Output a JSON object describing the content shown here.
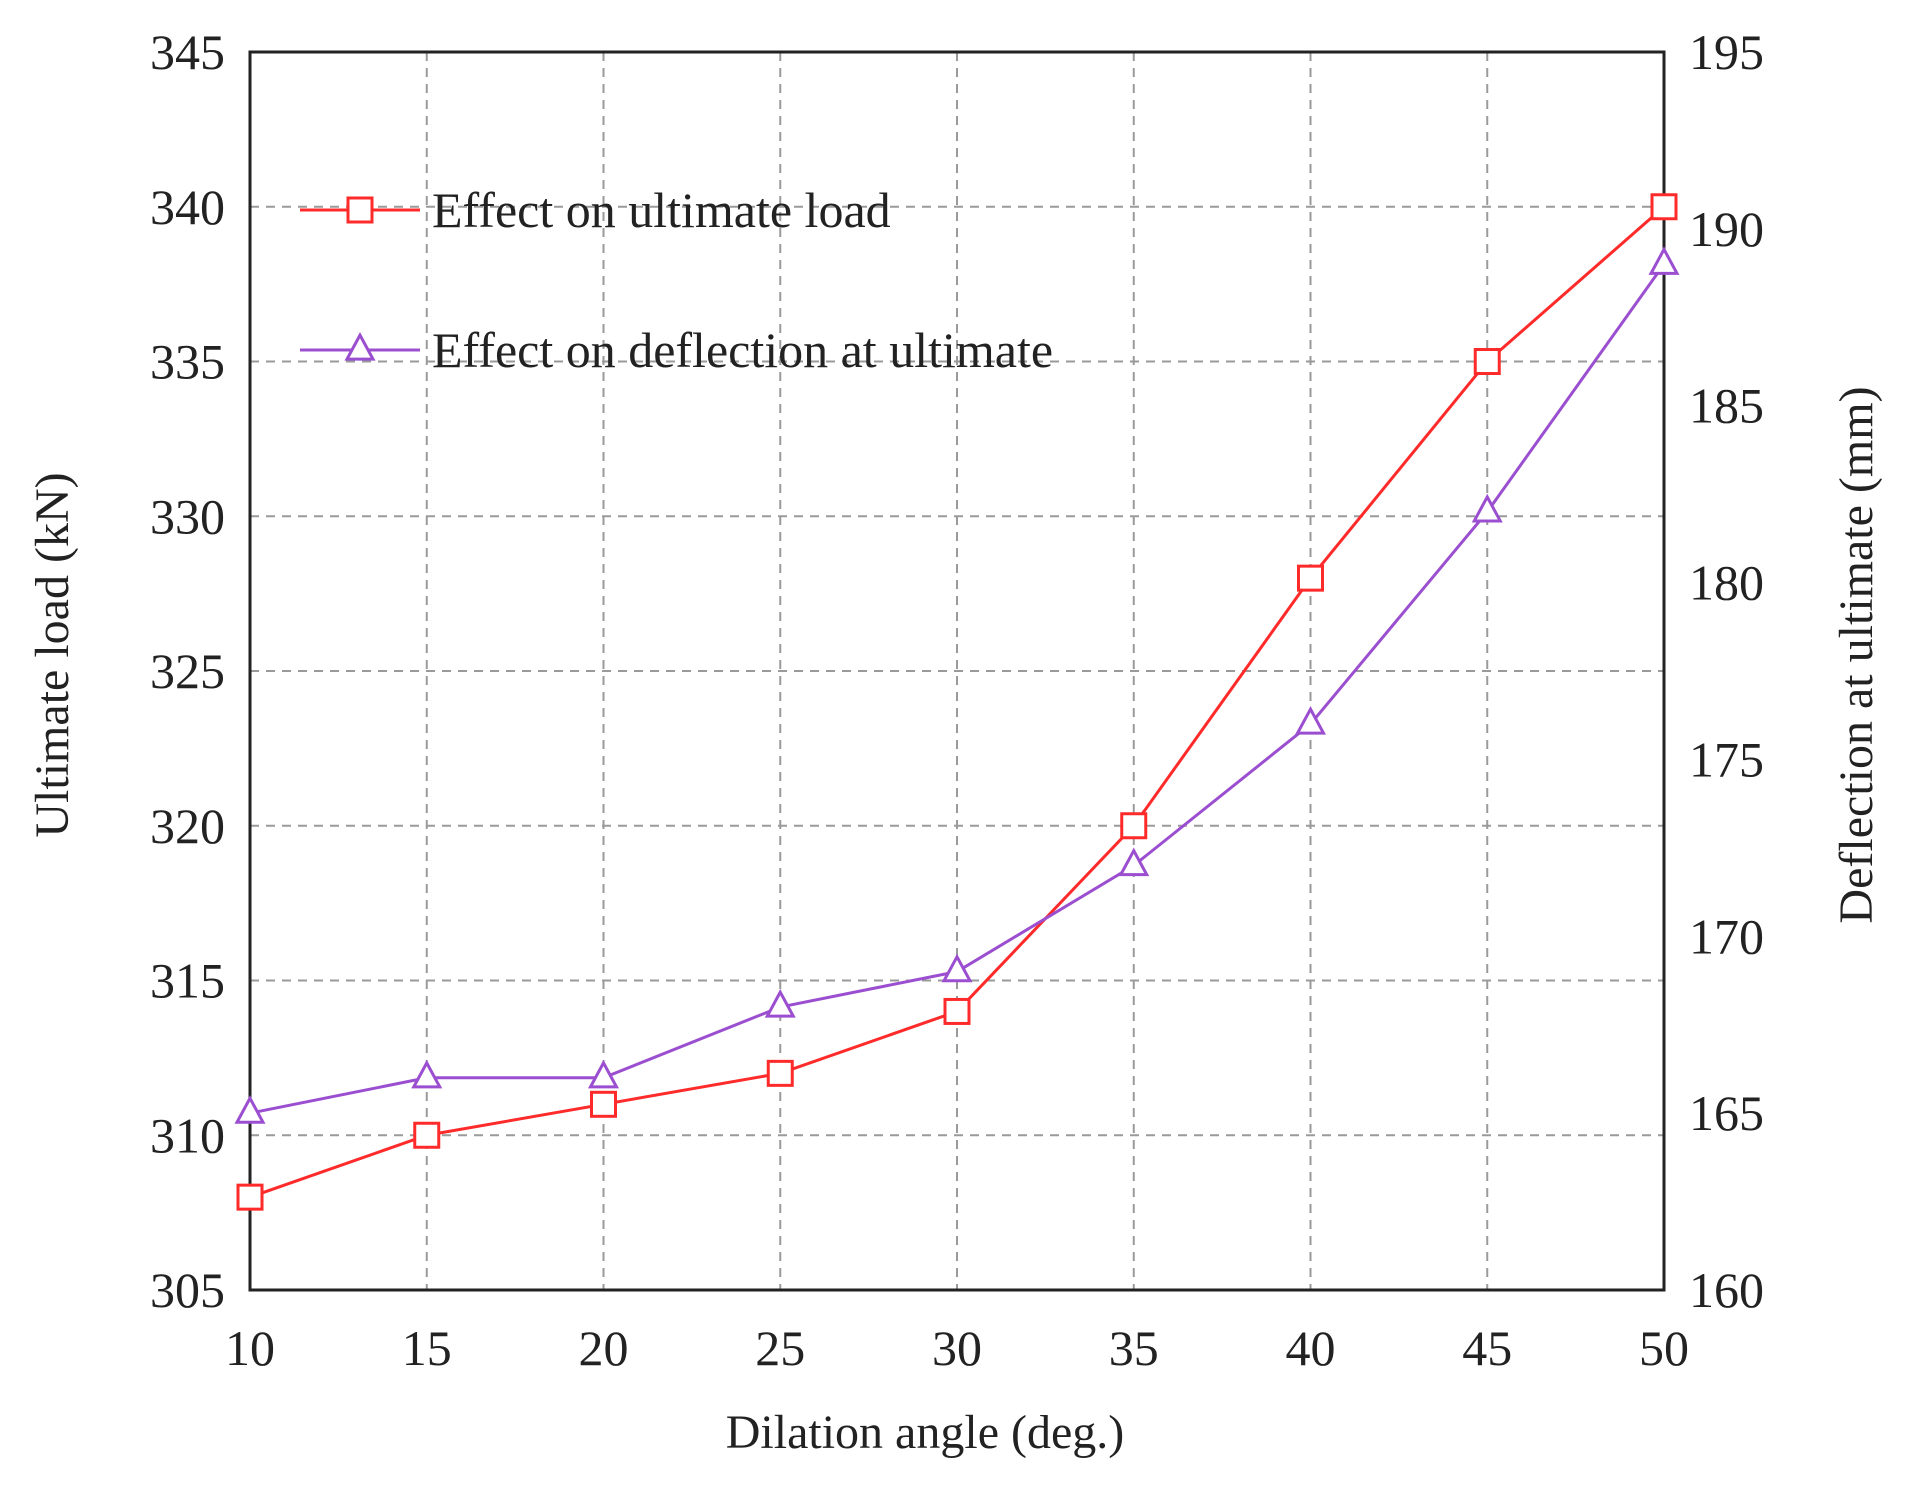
{
  "chart_data": {
    "type": "line",
    "title": "",
    "xlabel": "Dilation angle (deg.)",
    "ylabel_left": "Ultimate load (kN)",
    "ylabel_right": "Deflection at ultimate (mm)",
    "x": [
      10,
      15,
      20,
      25,
      30,
      35,
      40,
      45,
      50
    ],
    "xlim": [
      10,
      50
    ],
    "ylim_left": [
      305,
      345
    ],
    "ylim_right": [
      160,
      195
    ],
    "x_ticks": [
      "10",
      "15",
      "20",
      "25",
      "30",
      "35",
      "40",
      "45",
      "50"
    ],
    "y_ticks_left": [
      "305",
      "310",
      "315",
      "320",
      "325",
      "330",
      "335",
      "340",
      "345"
    ],
    "y_ticks_right": [
      "160",
      "165",
      "170",
      "175",
      "180",
      "185",
      "190",
      "195"
    ],
    "grid": true,
    "legend_position": "top-left",
    "series": [
      {
        "name": "Effect on ultimate load",
        "axis": "left",
        "marker": "square",
        "color": "#ff2a2a",
        "values": [
          308,
          310,
          311,
          312,
          314,
          320,
          328,
          335,
          340
        ]
      },
      {
        "name": "Effect on deflection at ultimate",
        "axis": "right",
        "marker": "triangle",
        "color": "#9b4fd0",
        "values": [
          165,
          166,
          166,
          168,
          169,
          172,
          176,
          182,
          189
        ]
      }
    ]
  }
}
